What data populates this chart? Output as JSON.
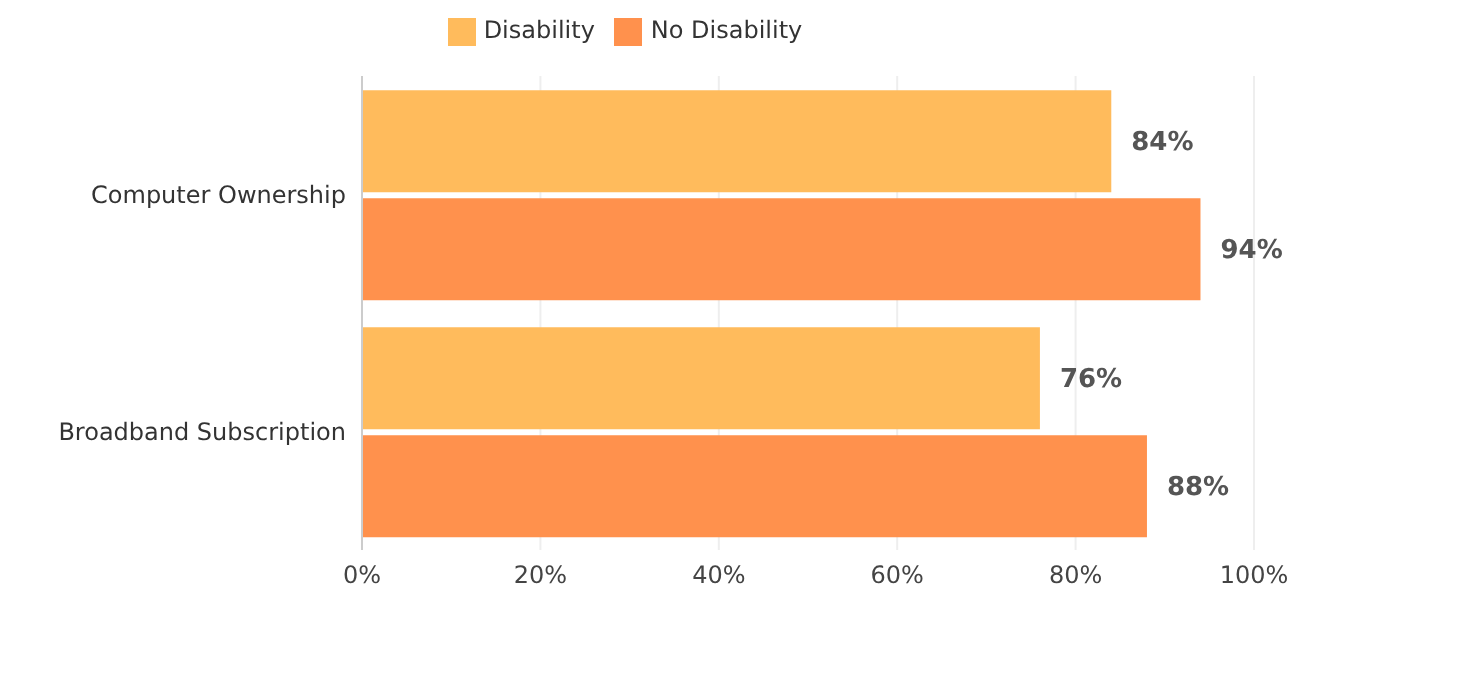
{
  "chart_data": {
    "type": "bar",
    "orientation": "horizontal",
    "categories": [
      "Computer Ownership",
      "Broadband Subscription"
    ],
    "series": [
      {
        "name": "Disability",
        "color": "#ffbb5c",
        "values": [
          84,
          76
        ],
        "value_labels": [
          "84%",
          "76%"
        ]
      },
      {
        "name": "No Disability",
        "color": "#ff914d",
        "values": [
          94,
          88
        ],
        "value_labels": [
          "94%",
          "88%"
        ]
      }
    ],
    "xlim": [
      0,
      100
    ],
    "xticks": [
      {
        "value": 0,
        "label": "0%"
      },
      {
        "value": 20,
        "label": "20%"
      },
      {
        "value": 40,
        "label": "40%"
      },
      {
        "value": 60,
        "label": "60%"
      },
      {
        "value": 80,
        "label": "80%"
      },
      {
        "value": 100,
        "label": "100%"
      }
    ],
    "grid": "x",
    "legend": "top"
  }
}
